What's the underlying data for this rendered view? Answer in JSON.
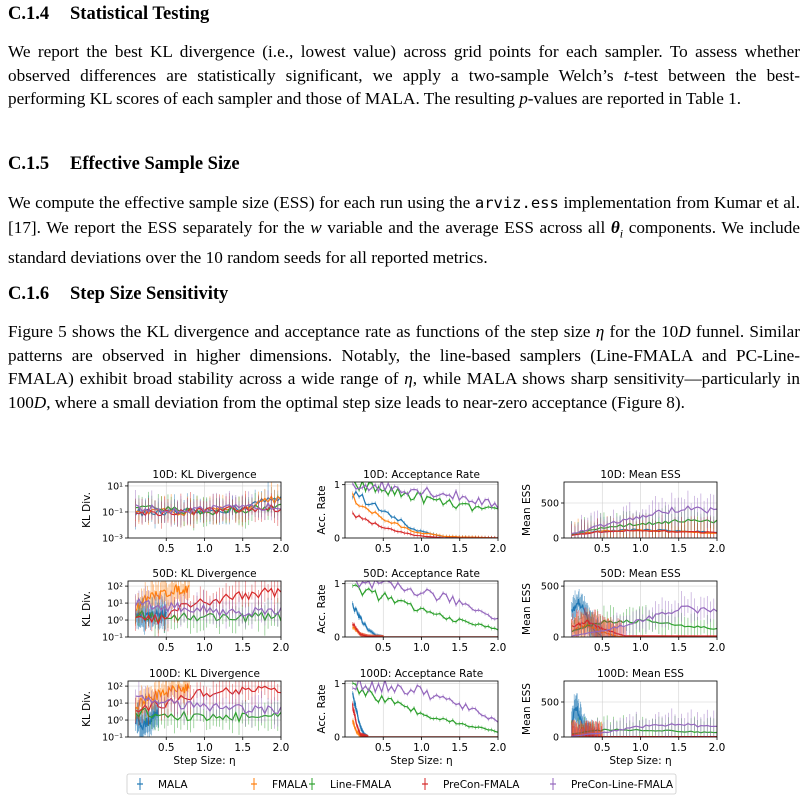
{
  "sections": [
    {
      "id": "c14",
      "number": "C.1.4",
      "title": "Statistical Testing"
    },
    {
      "id": "c15",
      "number": "C.1.5",
      "title": "Effective Sample Size"
    },
    {
      "id": "c16",
      "number": "C.1.6",
      "title": "Step Size Sensitivity"
    }
  ],
  "text": {
    "p1_a": "We report the best KL divergence (i.e., lowest value) across grid points for each sampler. To assess whether observed differences are statistically significant, we apply a two-sample Welch’s ",
    "p1_t": "t",
    "p1_b": "-test between the best-performing KL scores of each sampler and those of MALA. The resulting ",
    "p1_p": "p",
    "p1_c": "-values are reported in Table 1.",
    "p2_a": "We compute the effective sample size (ESS) for each run using the ",
    "p2_code": "arviz.ess",
    "p2_b": " implementation from Kumar et al. [17]. We report the ESS separately for the ",
    "p2_w": "w",
    "p2_c": " variable and the average ESS across all ",
    "p2_theta": "θ",
    "p2_i": "i",
    "p2_d": " components. We include standard deviations over the 10 random seeds for all reported metrics.",
    "p3_a": "Figure 5 shows the KL divergence and acceptance rate as functions of the step size ",
    "p3_eta1": "η",
    "p3_b": " for the ",
    "p3_10": "10",
    "p3_D1": "D",
    "p3_c": " funnel. Similar patterns are observed in higher dimensions. Notably, the line-based samplers (Line-FMALA and PC-Line-FMALA) exhibit broad stability across a wide range of ",
    "p3_eta2": "η",
    "p3_d": ", while MALA shows sharp sensitivity—particularly in ",
    "p3_100": "100",
    "p3_D2": "D",
    "p3_e": ", where a small deviation from the optimal step size leads to near-zero acceptance (Figure 8)."
  },
  "figure": {
    "xlabel": "Step Size: η",
    "colors": {
      "MALA": "#1f77b4",
      "FMALA": "#ff7f0e",
      "Line-FMALA": "#2ca02c",
      "PreCon-FMALA": "#d62728",
      "PreCon-Line-FMALA": "#9467bd"
    },
    "legend": [
      "MALA",
      "FMALA",
      "Line-FMALA",
      "PreCon-FMALA",
      "PreCon-Line-FMALA"
    ],
    "x_ticks": [
      "0.5",
      "1.0",
      "1.5",
      "2.0"
    ],
    "panels": [
      {
        "title": "10D: KL Divergence",
        "ylabel": "KL Div.",
        "yticks": [
          "10¹",
          "10⁻¹",
          "10⁻³"
        ]
      },
      {
        "title": "10D: Acceptance Rate",
        "ylabel": "Acc. Rate",
        "yticks": [
          "1",
          "0"
        ]
      },
      {
        "title": "10D: Mean ESS",
        "ylabel": "Mean ESS",
        "yticks": [
          "500",
          "0"
        ]
      },
      {
        "title": "50D: KL Divergence",
        "ylabel": "KL Div.",
        "yticks": [
          "10²",
          "10¹",
          "10⁰",
          "10⁻¹"
        ]
      },
      {
        "title": "50D: Acceptance Rate",
        "ylabel": "Acc. Rate",
        "yticks": [
          "1",
          "0"
        ]
      },
      {
        "title": "50D: Mean ESS",
        "ylabel": "Mean ESS",
        "yticks": [
          "500",
          "0"
        ]
      },
      {
        "title": "100D: KL Divergence",
        "ylabel": "KL Div.",
        "yticks": [
          "10²",
          "10¹",
          "10⁰",
          "10⁻¹"
        ]
      },
      {
        "title": "100D: Acceptance Rate",
        "ylabel": "Acc. Rate",
        "yticks": [
          "1",
          "0"
        ]
      },
      {
        "title": "100D: Mean ESS",
        "ylabel": "Mean ESS",
        "yticks": [
          "500",
          "0"
        ]
      }
    ]
  },
  "chart_data": [
    {
      "type": "line",
      "title": "10D: KL Divergence",
      "ylabel": "KL Div.",
      "xlabel": "",
      "yscale": "log",
      "xlim": [
        0,
        2.0
      ],
      "ylim": [
        0.001,
        20
      ],
      "series": [
        {
          "name": "MALA",
          "x": [
            0.1,
            0.5,
            1.0,
            1.5,
            2.0
          ],
          "y": [
            0.1,
            0.08,
            0.1,
            0.2,
            1.0
          ]
        },
        {
          "name": "FMALA",
          "x": [
            0.1,
            0.5,
            1.0,
            1.5,
            2.0
          ],
          "y": [
            0.15,
            0.1,
            0.1,
            0.2,
            1.0
          ]
        },
        {
          "name": "Line-FMALA",
          "x": [
            0.1,
            0.5,
            1.0,
            1.5,
            2.0
          ],
          "y": [
            0.2,
            0.15,
            0.1,
            0.15,
            0.25
          ]
        },
        {
          "name": "PreCon-FMALA",
          "x": [
            0.1,
            0.5,
            1.0,
            1.5,
            2.0
          ],
          "y": [
            0.1,
            0.1,
            0.12,
            0.15,
            0.2
          ]
        },
        {
          "name": "PreCon-Line-FMALA",
          "x": [
            0.1,
            0.5,
            1.0,
            1.5,
            2.0
          ],
          "y": [
            0.2,
            0.15,
            0.15,
            0.2,
            0.3
          ]
        }
      ]
    },
    {
      "type": "line",
      "title": "10D: Acceptance Rate",
      "ylabel": "Acc. Rate",
      "xlabel": "",
      "xlim": [
        0,
        2.0
      ],
      "ylim": [
        0,
        1.05
      ],
      "series": [
        {
          "name": "MALA",
          "x": [
            0.1,
            0.5,
            0.9,
            1.3,
            2.0
          ],
          "y": [
            0.85,
            0.55,
            0.15,
            0.02,
            0
          ]
        },
        {
          "name": "FMALA",
          "x": [
            0.1,
            0.5,
            0.9,
            1.3,
            2.0
          ],
          "y": [
            0.75,
            0.35,
            0.12,
            0.03,
            0
          ]
        },
        {
          "name": "Line-FMALA",
          "x": [
            0.1,
            0.5,
            1.0,
            1.5,
            2.0
          ],
          "y": [
            1.0,
            0.9,
            0.75,
            0.6,
            0.5
          ]
        },
        {
          "name": "PreCon-FMALA",
          "x": [
            0.1,
            0.5,
            0.9,
            1.3,
            2.0
          ],
          "y": [
            0.45,
            0.2,
            0.05,
            0,
            0
          ]
        },
        {
          "name": "PreCon-Line-FMALA",
          "x": [
            0.1,
            0.5,
            1.0,
            1.5,
            2.0
          ],
          "y": [
            1.0,
            0.97,
            0.9,
            0.78,
            0.6
          ]
        }
      ]
    },
    {
      "type": "line",
      "title": "10D: Mean ESS",
      "ylabel": "Mean ESS",
      "xlabel": "",
      "xlim": [
        0,
        2.0
      ],
      "ylim": [
        0,
        800
      ],
      "series": [
        {
          "name": "MALA",
          "x": [
            0.1,
            0.5,
            1.0,
            1.5,
            2.0
          ],
          "y": [
            50,
            100,
            120,
            100,
            80
          ]
        },
        {
          "name": "FMALA",
          "x": [
            0.1,
            0.5,
            1.0,
            1.5,
            2.0
          ],
          "y": [
            50,
            100,
            110,
            90,
            70
          ]
        },
        {
          "name": "Line-FMALA",
          "x": [
            0.1,
            0.5,
            1.0,
            1.5,
            2.0
          ],
          "y": [
            50,
            150,
            200,
            250,
            230
          ]
        },
        {
          "name": "PreCon-FMALA",
          "x": [
            0.1,
            0.5,
            1.0,
            1.5,
            2.0
          ],
          "y": [
            40,
            90,
            100,
            90,
            80
          ]
        },
        {
          "name": "PreCon-Line-FMALA",
          "x": [
            0.1,
            0.5,
            1.0,
            1.5,
            2.0
          ],
          "y": [
            60,
            180,
            300,
            420,
            400
          ]
        }
      ]
    },
    {
      "type": "line",
      "title": "50D: KL Divergence",
      "ylabel": "KL Div.",
      "xlabel": "",
      "yscale": "log",
      "xlim": [
        0,
        2.0
      ],
      "ylim": [
        0.1,
        200
      ],
      "series": [
        {
          "name": "MALA",
          "x": [
            0.1,
            0.3,
            0.5
          ],
          "y": [
            2,
            1.5,
            3
          ]
        },
        {
          "name": "FMALA",
          "x": [
            0.1,
            0.4,
            0.8
          ],
          "y": [
            5,
            30,
            80
          ]
        },
        {
          "name": "Line-FMALA",
          "x": [
            0.1,
            0.5,
            1.0,
            1.5,
            2.0
          ],
          "y": [
            2,
            1.5,
            1.5,
            1.5,
            1.5
          ]
        },
        {
          "name": "PreCon-FMALA",
          "x": [
            0.1,
            0.5,
            1.0,
            1.5,
            2.0
          ],
          "y": [
            1.5,
            1,
            10,
            30,
            50
          ]
        },
        {
          "name": "PreCon-Line-FMALA",
          "x": [
            0.1,
            0.5,
            1.0,
            1.5,
            2.0
          ],
          "y": [
            10,
            6,
            4,
            3,
            3
          ]
        }
      ]
    },
    {
      "type": "line",
      "title": "50D: Acceptance Rate",
      "ylabel": "Acc. Rate",
      "xlabel": "",
      "xlim": [
        0,
        2.0
      ],
      "ylim": [
        0,
        1.05
      ],
      "series": [
        {
          "name": "MALA",
          "x": [
            0.1,
            0.2,
            0.3,
            0.4,
            0.5
          ],
          "y": [
            0.6,
            0.35,
            0.15,
            0.03,
            0
          ]
        },
        {
          "name": "FMALA",
          "x": [
            0.1,
            0.2,
            0.3,
            0.5
          ],
          "y": [
            0.2,
            0.05,
            0.01,
            0
          ]
        },
        {
          "name": "Line-FMALA",
          "x": [
            0.1,
            0.5,
            1.0,
            1.5,
            2.0
          ],
          "y": [
            0.95,
            0.75,
            0.5,
            0.3,
            0.15
          ]
        },
        {
          "name": "PreCon-FMALA",
          "x": [
            0.1,
            0.2,
            0.3,
            0.5
          ],
          "y": [
            0.25,
            0.05,
            0.01,
            0
          ]
        },
        {
          "name": "PreCon-Line-FMALA",
          "x": [
            0.1,
            0.5,
            1.0,
            1.5,
            2.0
          ],
          "y": [
            1.0,
            0.95,
            0.85,
            0.65,
            0.35
          ]
        }
      ]
    },
    {
      "type": "line",
      "title": "50D: Mean ESS",
      "ylabel": "Mean ESS",
      "xlabel": "",
      "xlim": [
        0,
        2.0
      ],
      "ylim": [
        0,
        550
      ],
      "series": [
        {
          "name": "MALA",
          "x": [
            0.1,
            0.2,
            0.3,
            0.4,
            0.5
          ],
          "y": [
            250,
            350,
            200,
            60,
            5
          ]
        },
        {
          "name": "FMALA",
          "x": [
            0.1,
            0.3,
            0.5,
            0.7
          ],
          "y": [
            60,
            120,
            50,
            5
          ]
        },
        {
          "name": "Line-FMALA",
          "x": [
            0.1,
            0.5,
            1.0,
            1.5,
            2.0
          ],
          "y": [
            60,
            150,
            160,
            120,
            80
          ]
        },
        {
          "name": "PreCon-FMALA",
          "x": [
            0.1,
            0.3,
            0.5,
            0.8
          ],
          "y": [
            100,
            150,
            80,
            10
          ]
        },
        {
          "name": "PreCon-Line-FMALA",
          "x": [
            0.1,
            0.5,
            1.0,
            1.5,
            2.0
          ],
          "y": [
            10,
            60,
            160,
            280,
            250
          ]
        }
      ]
    },
    {
      "type": "line",
      "title": "100D: KL Divergence",
      "ylabel": "KL Div.",
      "xlabel": "Step Size: η",
      "yscale": "log",
      "xlim": [
        0,
        2.0
      ],
      "ylim": [
        0.1,
        200
      ],
      "series": [
        {
          "name": "MALA",
          "x": [
            0.1,
            0.2,
            0.3,
            0.4
          ],
          "y": [
            1,
            0.5,
            1,
            3
          ]
        },
        {
          "name": "FMALA",
          "x": [
            0.1,
            0.4,
            0.8
          ],
          "y": [
            5,
            30,
            80
          ]
        },
        {
          "name": "Line-FMALA",
          "x": [
            0.1,
            0.5,
            1.0,
            1.5,
            2.0
          ],
          "y": [
            3,
            2,
            1.5,
            1.5,
            1.5
          ]
        },
        {
          "name": "PreCon-FMALA",
          "x": [
            0.1,
            0.5,
            1.0,
            1.5,
            2.0
          ],
          "y": [
            2,
            10,
            40,
            60,
            80
          ]
        },
        {
          "name": "PreCon-Line-FMALA",
          "x": [
            0.1,
            0.5,
            1.0,
            1.5,
            2.0
          ],
          "y": [
            20,
            10,
            5,
            4,
            4
          ]
        }
      ]
    },
    {
      "type": "line",
      "title": "100D: Acceptance Rate",
      "ylabel": "Acc. Rate",
      "xlabel": "Step Size: η",
      "xlim": [
        0,
        2.0
      ],
      "ylim": [
        0,
        1.05
      ],
      "series": [
        {
          "name": "MALA",
          "x": [
            0.1,
            0.15,
            0.2,
            0.25,
            0.3
          ],
          "y": [
            0.8,
            0.5,
            0.2,
            0.05,
            0
          ]
        },
        {
          "name": "FMALA",
          "x": [
            0.1,
            0.15,
            0.2,
            0.3
          ],
          "y": [
            0.3,
            0.1,
            0.02,
            0
          ]
        },
        {
          "name": "Line-FMALA",
          "x": [
            0.1,
            0.5,
            1.0,
            1.5,
            2.0
          ],
          "y": [
            0.95,
            0.7,
            0.45,
            0.25,
            0.1
          ]
        },
        {
          "name": "PreCon-FMALA",
          "x": [
            0.1,
            0.15,
            0.2,
            0.3
          ],
          "y": [
            0.6,
            0.25,
            0.05,
            0
          ]
        },
        {
          "name": "PreCon-Line-FMALA",
          "x": [
            0.1,
            0.5,
            1.0,
            1.5,
            2.0
          ],
          "y": [
            1.0,
            0.95,
            0.85,
            0.6,
            0.3
          ]
        }
      ]
    },
    {
      "type": "line",
      "title": "100D: Mean ESS",
      "ylabel": "Mean ESS",
      "xlabel": "Step Size: η",
      "xlim": [
        0,
        2.0
      ],
      "ylim": [
        0,
        800
      ],
      "series": [
        {
          "name": "MALA",
          "x": [
            0.1,
            0.15,
            0.2,
            0.25,
            0.3,
            0.4
          ],
          "y": [
            200,
            450,
            300,
            150,
            50,
            5
          ]
        },
        {
          "name": "FMALA",
          "x": [
            0.1,
            0.3,
            0.5
          ],
          "y": [
            20,
            15,
            5
          ]
        },
        {
          "name": "Line-FMALA",
          "x": [
            0.1,
            0.5,
            1.0,
            1.5,
            2.0
          ],
          "y": [
            50,
            100,
            100,
            80,
            60
          ]
        },
        {
          "name": "PreCon-FMALA",
          "x": [
            0.1,
            0.3,
            0.5
          ],
          "y": [
            30,
            20,
            5
          ]
        },
        {
          "name": "PreCon-Line-FMALA",
          "x": [
            0.1,
            0.5,
            1.0,
            1.5,
            2.0
          ],
          "y": [
            10,
            60,
            150,
            180,
            150
          ]
        }
      ]
    }
  ]
}
